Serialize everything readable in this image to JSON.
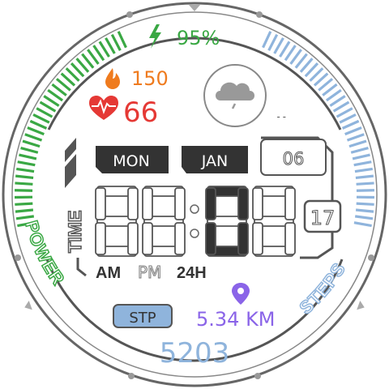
{
  "colors": {
    "power_green": "#3aa844",
    "steps_blue": "#8fb4dc",
    "fire_orange": "#ef7b1e",
    "heart_red": "#e53935",
    "location_purple": "#8a64e8",
    "dark": "#333333",
    "outline": "#555555"
  },
  "battery": {
    "icon": "lightning-bolt-icon",
    "value": "95%"
  },
  "calories": {
    "icon": "flame-icon",
    "value": "150"
  },
  "heart_rate": {
    "icon": "heart-pulse-icon",
    "value": "66"
  },
  "weather": {
    "icon": "rain-cloud-icon",
    "temperature": "--"
  },
  "date": {
    "weekday": "MON",
    "month": "JAN",
    "day": "06"
  },
  "time": {
    "label": "TIME",
    "digit_1": "8",
    "digit_2": "8",
    "separator": ":",
    "digit_3": "0",
    "digit_4": "8",
    "seconds": "17",
    "am": "AM",
    "pm": "PM",
    "h24": "24H"
  },
  "power_ring": {
    "label": "POWER",
    "level_percent": 95
  },
  "steps_ring": {
    "label": "STEPS"
  },
  "distance": {
    "icon": "location-pin-icon",
    "value": "5.34 KM"
  },
  "steps": {
    "badge": "STP",
    "value": "5203"
  }
}
